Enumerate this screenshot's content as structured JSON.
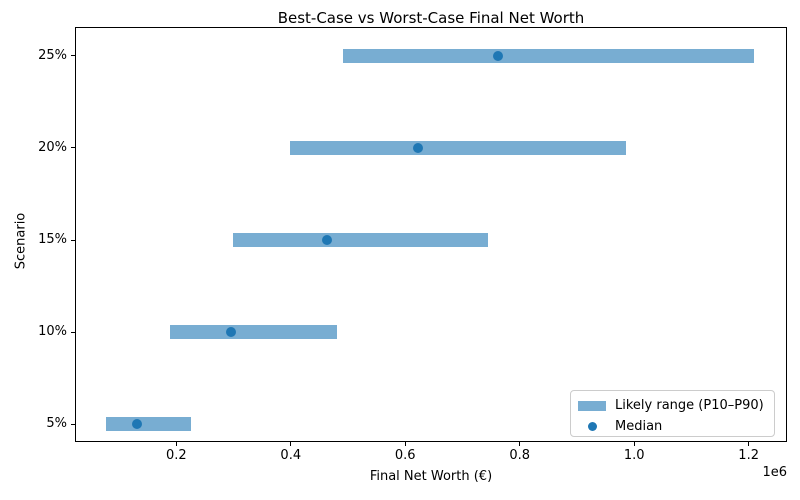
{
  "chart_data": {
    "type": "bar",
    "subtype": "horizontal-range-bars-with-median-markers",
    "title": "Best-Case vs Worst-Case Final Net Worth",
    "xlabel": "Final Net Worth (€)",
    "ylabel": "Scenario",
    "categories": [
      "5%",
      "10%",
      "15%",
      "20%",
      "25%"
    ],
    "series": [
      {
        "name": "Likely range (P10–P90)",
        "type": "range_bar",
        "p10": [
          78000,
          189000,
          299000,
          398000,
          491000
        ],
        "p90": [
          225000,
          480000,
          745000,
          986000,
          1209000
        ]
      },
      {
        "name": "Median",
        "type": "scatter",
        "values": [
          132000,
          295000,
          464000,
          623000,
          762000
        ]
      }
    ],
    "xlim": [
      23000,
      1267000
    ],
    "x_ticks": [
      200000,
      400000,
      600000,
      800000,
      1000000,
      1200000
    ],
    "x_tick_labels": [
      "0.2",
      "0.4",
      "0.6",
      "0.8",
      "1.0",
      "1.2"
    ],
    "x_offset_label": "1e6",
    "grid": false,
    "legend_position": "lower right",
    "colors": {
      "range_bar": "#78add2",
      "median_dot": "#1f77b4",
      "spine": "#000000",
      "legend_border": "#cccccc"
    }
  }
}
